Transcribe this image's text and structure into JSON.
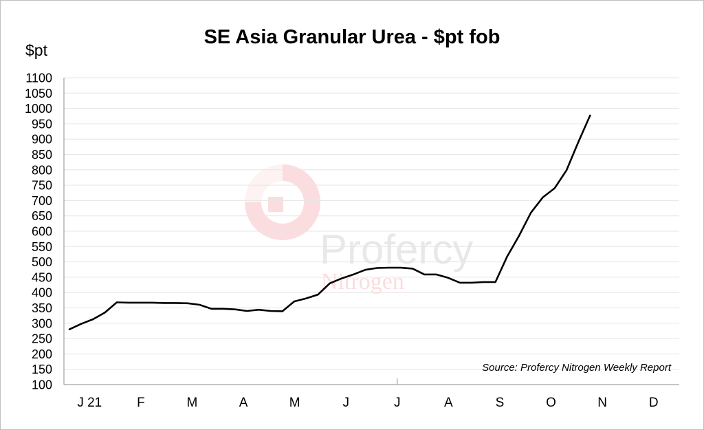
{
  "chart_data": {
    "type": "line",
    "title": "SE Asia Granular Urea - $pt fob",
    "ylabel": "$pt",
    "xlabel": "",
    "source": "Source: Profercy Nitrogen Weekly Report",
    "ylim": [
      100,
      1100
    ],
    "yticks": [
      100,
      150,
      200,
      250,
      300,
      350,
      400,
      450,
      500,
      550,
      600,
      650,
      700,
      750,
      800,
      850,
      900,
      950,
      1000,
      1050,
      1100
    ],
    "month_labels": [
      "J 21",
      "F",
      "M",
      "A",
      "M",
      "J",
      "J",
      "A",
      "S",
      "O",
      "N",
      "D"
    ],
    "grid": true,
    "series": [
      {
        "values": [
          280,
          298,
          313,
          335,
          368,
          367,
          367,
          367,
          366,
          366,
          365,
          360,
          347,
          347,
          345,
          340,
          344,
          340,
          339,
          371,
          381,
          393,
          430,
          446,
          459,
          474,
          480,
          481,
          481,
          478,
          459,
          459,
          448,
          432,
          432,
          434,
          434,
          518,
          585,
          660,
          710,
          740,
          798,
          890,
          977
        ],
        "color": "#000000"
      }
    ]
  },
  "watermark": {
    "text": "Profercy",
    "subtext": "Nitrogen"
  }
}
